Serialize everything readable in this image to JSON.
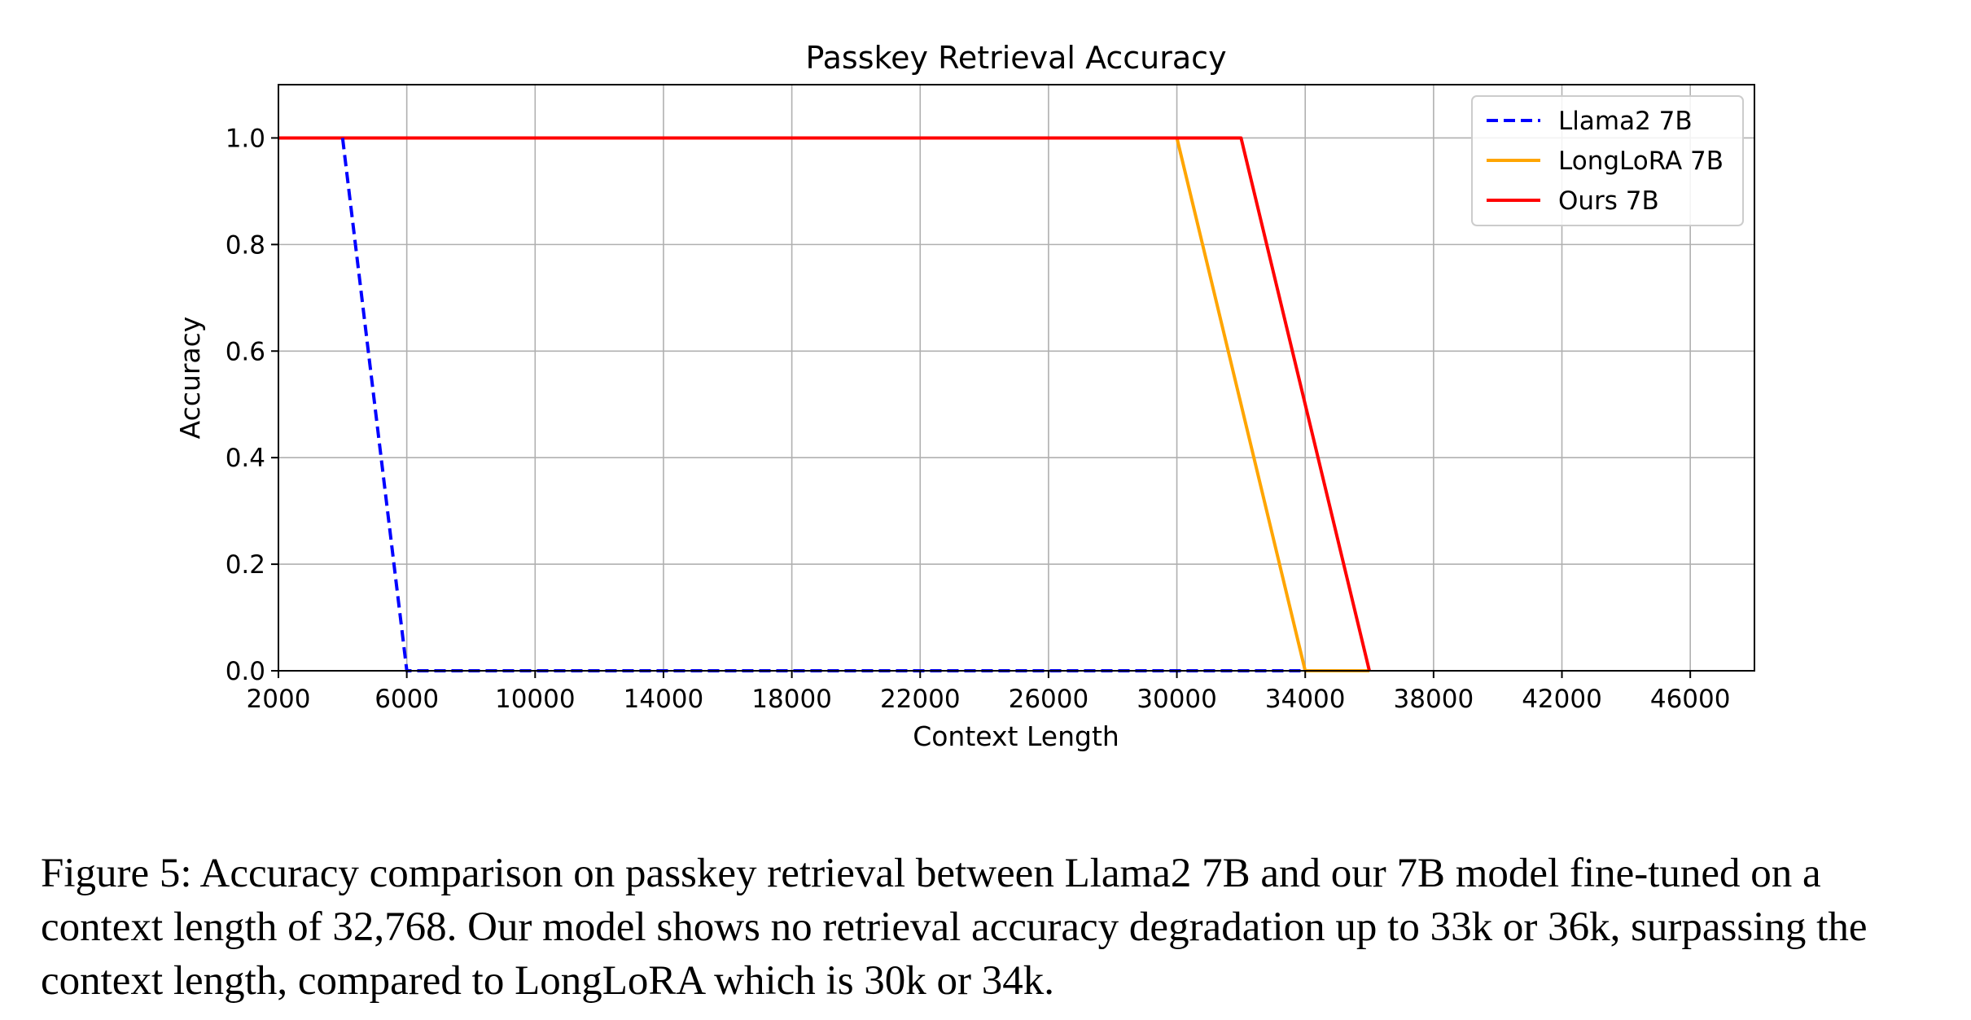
{
  "chart_data": {
    "type": "line",
    "title": "Passkey Retrieval Accuracy",
    "xlabel": "Context Length",
    "ylabel": "Accuracy",
    "xlim": [
      2000,
      48000
    ],
    "ylim": [
      0,
      1.1
    ],
    "xticks": [
      2000,
      6000,
      10000,
      14000,
      18000,
      22000,
      26000,
      30000,
      34000,
      38000,
      42000,
      46000
    ],
    "yticks": [
      0.0,
      0.2,
      0.4,
      0.6,
      0.8,
      1.0
    ],
    "xtick_labels": [
      "2000",
      "6000",
      "10000",
      "14000",
      "18000",
      "22000",
      "26000",
      "30000",
      "34000",
      "38000",
      "42000",
      "46000"
    ],
    "ytick_labels": [
      "0.0",
      "0.2",
      "0.4",
      "0.6",
      "0.8",
      "1.0"
    ],
    "grid": true,
    "legend_position": "top-right",
    "series": [
      {
        "name": "Llama2 7B",
        "color": "#0000ff",
        "style": "dashed",
        "x": [
          4000,
          6000,
          34000
        ],
        "y": [
          1.0,
          0.0,
          0.0
        ]
      },
      {
        "name": "LongLoRA 7B",
        "color": "#ffa500",
        "style": "solid",
        "x": [
          2000,
          30000,
          34000,
          36000
        ],
        "y": [
          1.0,
          1.0,
          0.0,
          0.0
        ]
      },
      {
        "name": "Ours 7B",
        "color": "#ff0000",
        "style": "solid",
        "x": [
          2000,
          32000,
          36000
        ],
        "y": [
          1.0,
          1.0,
          0.0
        ]
      }
    ]
  },
  "caption": {
    "text": "Figure 5: Accuracy comparison on passkey retrieval between Llama2 7B and our 7B model fine-tuned on a context length of 32,768. Our model shows no retrieval accuracy degradation up to 33k or 36k, surpassing the context length, compared to LongLoRA which is 30k or 34k."
  }
}
